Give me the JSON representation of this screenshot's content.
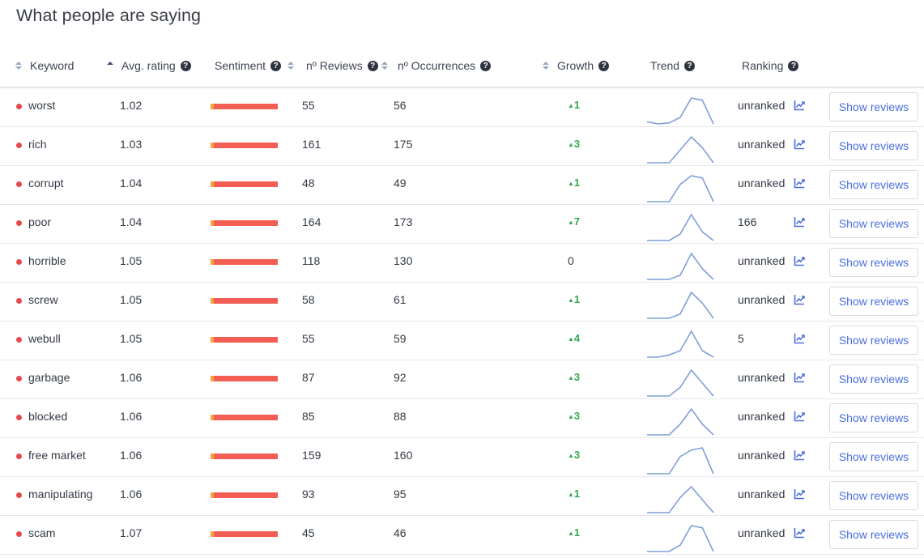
{
  "title": "What people are saying",
  "columns": {
    "keyword": "Keyword",
    "avg_rating": "Avg. rating",
    "sentiment": "Sentiment",
    "reviews": "nº Reviews",
    "occurrences": "nº Occurrences",
    "growth": "Growth",
    "trend": "Trend",
    "ranking": "Ranking"
  },
  "help_glyph": "?",
  "show_reviews_label": "Show reviews",
  "rows": [
    {
      "keyword": "worst",
      "rating": "1.02",
      "reviews": "55",
      "occurrences": "56",
      "growth": "1",
      "growth_dir": "up",
      "ranking": "unranked",
      "trend": [
        1,
        0,
        0.5,
        3,
        12,
        11,
        0
      ]
    },
    {
      "keyword": "rich",
      "rating": "1.03",
      "reviews": "161",
      "occurrences": "175",
      "growth": "3",
      "growth_dir": "up",
      "ranking": "unranked",
      "trend": [
        0,
        0,
        0,
        6,
        12,
        7,
        0
      ]
    },
    {
      "keyword": "corrupt",
      "rating": "1.04",
      "reviews": "48",
      "occurrences": "49",
      "growth": "1",
      "growth_dir": "up",
      "ranking": "unranked",
      "trend": [
        0,
        0,
        0,
        8,
        12,
        11,
        0
      ]
    },
    {
      "keyword": "poor",
      "rating": "1.04",
      "reviews": "164",
      "occurrences": "173",
      "growth": "7",
      "growth_dir": "up",
      "ranking": "166",
      "trend": [
        0,
        0,
        0,
        3,
        12,
        4,
        0
      ]
    },
    {
      "keyword": "horrible",
      "rating": "1.05",
      "reviews": "118",
      "occurrences": "130",
      "growth": "0",
      "growth_dir": "none",
      "ranking": "unranked",
      "trend": [
        0,
        0,
        0,
        2,
        12,
        5,
        0
      ]
    },
    {
      "keyword": "screw",
      "rating": "1.05",
      "reviews": "58",
      "occurrences": "61",
      "growth": "1",
      "growth_dir": "up",
      "ranking": "unranked",
      "trend": [
        0,
        0,
        0,
        2,
        12,
        7,
        0
      ]
    },
    {
      "keyword": "webull",
      "rating": "1.05",
      "reviews": "55",
      "occurrences": "59",
      "growth": "4",
      "growth_dir": "up",
      "ranking": "5",
      "trend": [
        0,
        0,
        1,
        3,
        12,
        3,
        0
      ]
    },
    {
      "keyword": "garbage",
      "rating": "1.06",
      "reviews": "87",
      "occurrences": "92",
      "growth": "3",
      "growth_dir": "up",
      "ranking": "unranked",
      "trend": [
        0,
        0,
        0,
        4,
        12,
        6,
        0
      ]
    },
    {
      "keyword": "blocked",
      "rating": "1.06",
      "reviews": "85",
      "occurrences": "88",
      "growth": "3",
      "growth_dir": "up",
      "ranking": "unranked",
      "trend": [
        0,
        0,
        0,
        5,
        12,
        5,
        0
      ]
    },
    {
      "keyword": "free market",
      "rating": "1.06",
      "reviews": "159",
      "occurrences": "160",
      "growth": "3",
      "growth_dir": "up",
      "ranking": "unranked",
      "trend": [
        0,
        0,
        0,
        8,
        11,
        12,
        0
      ]
    },
    {
      "keyword": "manipulating",
      "rating": "1.06",
      "reviews": "93",
      "occurrences": "95",
      "growth": "1",
      "growth_dir": "up",
      "ranking": "unranked",
      "trend": [
        0,
        0,
        0,
        7,
        12,
        6,
        0
      ]
    },
    {
      "keyword": "scam",
      "rating": "1.07",
      "reviews": "45",
      "occurrences": "46",
      "growth": "1",
      "growth_dir": "up",
      "ranking": "unranked",
      "trend": [
        0,
        0,
        0,
        3,
        12,
        11,
        0
      ]
    }
  ],
  "colors": {
    "dot": "#e5484d",
    "sentiment_negative": "#f25d54",
    "sentiment_mixed": "#f5a33a",
    "growth_up": "#35a853",
    "trend_line": "#7e9fd6",
    "link": "#4a6ee0"
  },
  "icons": {
    "dot": "negative-dot-icon",
    "trend_link": "line-chart-icon",
    "sort": "sort-arrows-icon",
    "help": "question-circle-icon"
  }
}
